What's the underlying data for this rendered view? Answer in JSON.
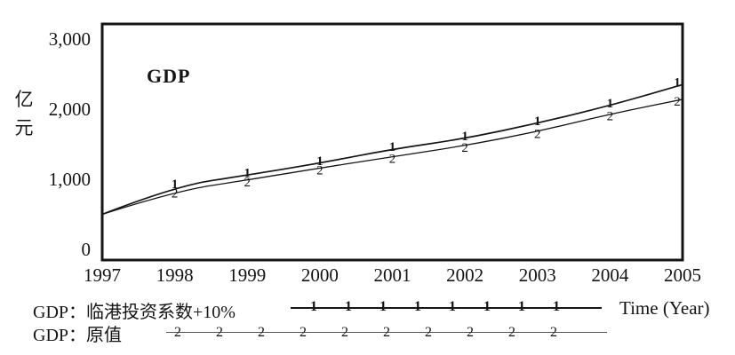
{
  "chart_data": {
    "type": "line",
    "title": "GDP",
    "x_label": "Time (Year)",
    "y_label": "亿元",
    "x": [
      1997,
      1998,
      1999,
      2000,
      2001,
      2002,
      2003,
      2004,
      2005
    ],
    "x_tick_labels": [
      "1997",
      "1998",
      "1999",
      "2000",
      "2001",
      "2002",
      "2003",
      "2004",
      "2005"
    ],
    "y_ticks": {
      "labels": [
        "3,000",
        "2,000",
        "1,000",
        "0"
      ],
      "values": [
        3000,
        2000,
        1000,
        0
      ]
    },
    "ylim": [
      0,
      3000
    ],
    "grid": false,
    "legend_position": "below-left",
    "line_color": "#141414",
    "series": [
      {
        "name": "GDP：临港投资系数+10%",
        "curve_label": "1",
        "legend_marker_count": 8,
        "values": [
          500,
          900,
          1060,
          1230,
          1430,
          1580,
          1800,
          2050,
          2350
        ]
      },
      {
        "name": "GDP：原值",
        "curve_label": "2",
        "legend_marker_count": 10,
        "values": [
          500,
          830,
          990,
          1160,
          1320,
          1480,
          1680,
          1930,
          2140
        ]
      }
    ]
  }
}
